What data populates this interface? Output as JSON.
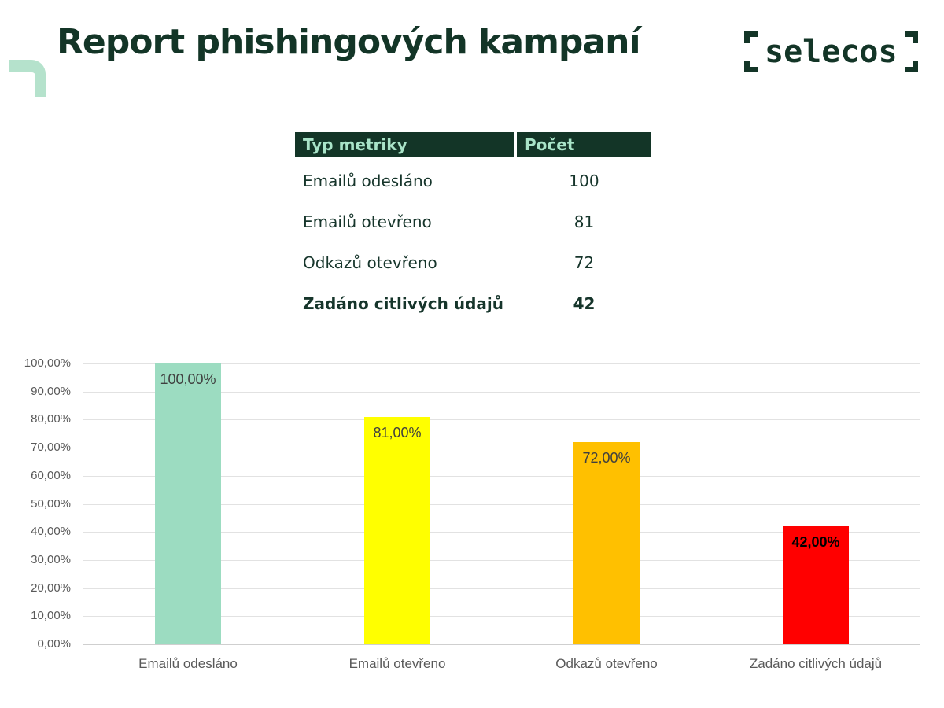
{
  "header": {
    "title": "Report phishingových kampaní",
    "logo_text": "selecos"
  },
  "table": {
    "headers": [
      "Typ metriky",
      "Počet"
    ],
    "rows": [
      {
        "label": "Emailů odesláno",
        "value": "100"
      },
      {
        "label": "Emailů otevřeno",
        "value": "81"
      },
      {
        "label": "Odkazů otevřeno",
        "value": "72"
      },
      {
        "label": "Zadáno citlivých údajů",
        "value": "42"
      }
    ]
  },
  "chart_data": {
    "type": "bar",
    "categories": [
      "Emailů odesláno",
      "Emailů otevřeno",
      "Odkazů otevřeno",
      "Zadáno citlivých údajů"
    ],
    "values": [
      100,
      81,
      72,
      42
    ],
    "value_labels": [
      "100,00%",
      "81,00%",
      "72,00%",
      "42,00%"
    ],
    "value_label_bold": [
      false,
      false,
      false,
      true
    ],
    "bar_colors": [
      "#9cdcc1",
      "#ffff00",
      "#ffc000",
      "#ff0000"
    ],
    "title": "",
    "xlabel": "",
    "ylabel": "",
    "ylim": [
      0,
      100
    ],
    "ytick_step": 10,
    "ytick_labels": [
      "0,00%",
      "10,00%",
      "20,00%",
      "30,00%",
      "40,00%",
      "50,00%",
      "60,00%",
      "70,00%",
      "80,00%",
      "90,00%",
      "100,00%"
    ],
    "grid": true,
    "legend": "none"
  },
  "colors": {
    "brand_dark_green": "#133527",
    "brand_mint": "#b5e2cc",
    "table_header_bg": "#133527",
    "table_header_text": "#a9e4c8",
    "gridline": "#e2e2e2",
    "axis_text": "#595959"
  }
}
